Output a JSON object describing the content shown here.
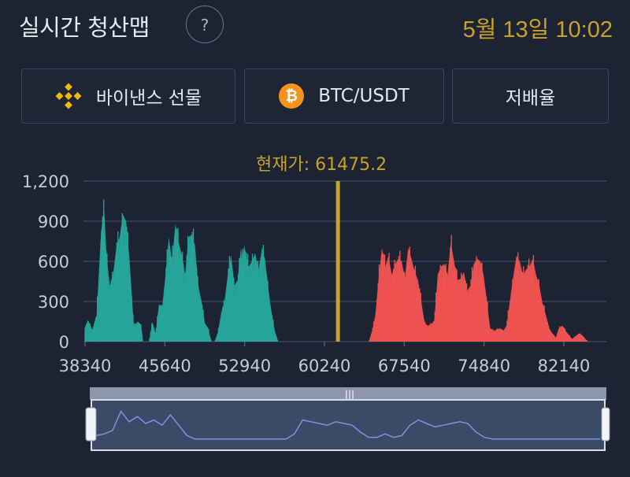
{
  "header": {
    "title": "실시간 청산맵",
    "help_label": "?",
    "timestamp": "5월 13일 10:02"
  },
  "selectors": {
    "exchange_label": "바이낸스 선물",
    "pair_label": "BTC/USDT",
    "leverage_label": "저배율"
  },
  "colors": {
    "background": "#1c2433",
    "long": "#26a69a",
    "short": "#ef5350",
    "current_price": "#c9a227",
    "navigator_line": "#7b93e0"
  },
  "chart_data": {
    "type": "area",
    "title": "",
    "current_price_label": "현재가: 61475.2",
    "current_price": 61475.2,
    "xlabel": "",
    "ylabel": "",
    "xlim": [
      38340,
      88000
    ],
    "ylim": [
      0,
      1200
    ],
    "x_ticks": [
      38340,
      45640,
      52940,
      60240,
      67540,
      74840,
      82140
    ],
    "x_tick_labels": [
      "38340",
      "45640",
      "52940",
      "60240",
      "67540",
      "74840",
      "82140"
    ],
    "y_ticks": [
      0,
      300,
      600,
      900,
      1200
    ],
    "y_tick_labels": [
      "0",
      "300",
      "600",
      "900",
      "1,200"
    ],
    "grid": true,
    "series": [
      {
        "side": "long",
        "x": [
          38300,
          38600,
          39000,
          39400,
          39800,
          40100,
          40300,
          40600,
          40900,
          41200,
          41500,
          41800,
          42100,
          42400,
          42800,
          43200,
          43500,
          43600,
          44200,
          44500,
          44800,
          45100,
          45400,
          45700,
          46000,
          46300,
          46600,
          46900,
          47200,
          47500,
          47800,
          48100,
          48400,
          48700,
          49000,
          49300,
          49600,
          49900,
          50200,
          50500,
          50800,
          51100,
          51400,
          51700,
          52000,
          52300,
          52600,
          52700,
          52900,
          53300,
          53600,
          53900,
          54200,
          54500,
          54800,
          55100,
          55400,
          55700,
          56000,
          56300,
          56600,
          56900,
          57200,
          57500,
          57800,
          58100,
          58400,
          58700,
          58800
        ],
        "y": [
          100,
          160,
          90,
          200,
          820,
          980,
          650,
          420,
          500,
          700,
          780,
          950,
          900,
          620,
          120,
          150,
          110,
          0,
          0,
          150,
          60,
          280,
          260,
          500,
          780,
          600,
          880,
          740,
          650,
          500,
          780,
          800,
          720,
          420,
          300,
          140,
          100,
          0,
          0,
          70,
          220,
          300,
          500,
          650,
          420,
          460,
          700,
          600,
          720,
          560,
          600,
          660,
          540,
          680,
          620,
          400,
          220,
          80,
          0,
          0,
          0,
          0,
          0,
          0,
          0,
          0,
          0,
          0,
          0
        ],
        "notes": ""
      },
      {
        "side": "short",
        "x": [
          64300,
          64600,
          64900,
          65200,
          65500,
          65800,
          66100,
          66400,
          66700,
          67000,
          67300,
          67600,
          67900,
          68200,
          68500,
          68800,
          69100,
          69400,
          69700,
          70000,
          70300,
          70600,
          70900,
          71200,
          71500,
          71800,
          72100,
          72400,
          72700,
          73000,
          73300,
          73600,
          73900,
          74200,
          74500,
          74800,
          75100,
          75400,
          75700,
          76000,
          76300,
          76600,
          76900,
          77200,
          77500,
          77800,
          78100,
          78400,
          78700,
          79000,
          79300,
          79600,
          79900,
          80200,
          80500,
          80800,
          81100,
          81400,
          81700,
          82000,
          82300,
          82600,
          82900,
          83200,
          83500,
          83800,
          84100,
          84400,
          84700,
          85000,
          85300,
          85600,
          85900,
          86200,
          86500,
          86800,
          87100,
          87400,
          87700
        ],
        "y": [
          0,
          80,
          200,
          480,
          700,
          560,
          640,
          500,
          580,
          620,
          600,
          480,
          700,
          620,
          520,
          460,
          300,
          140,
          120,
          130,
          160,
          500,
          560,
          580,
          500,
          740,
          600,
          460,
          470,
          520,
          380,
          420,
          580,
          620,
          600,
          500,
          300,
          100,
          80,
          90,
          100,
          80,
          120,
          300,
          480,
          640,
          600,
          500,
          540,
          560,
          620,
          500,
          420,
          280,
          200,
          100,
          60,
          30,
          100,
          120,
          80,
          50,
          20,
          40,
          60,
          50,
          20,
          0,
          0,
          0,
          0,
          0,
          0,
          0,
          0,
          0,
          0,
          0,
          0
        ]
      }
    ],
    "navigator": {
      "y": [
        0.15,
        0.2,
        0.3,
        0.85,
        0.55,
        0.7,
        0.5,
        0.6,
        0.45,
        0.75,
        0.45,
        0.15,
        0.05,
        0.05,
        0.05,
        0.05,
        0.05,
        0.05,
        0.05,
        0.05,
        0.05,
        0.05,
        0.05,
        0.05,
        0.2,
        0.6,
        0.55,
        0.5,
        0.45,
        0.55,
        0.5,
        0.45,
        0.25,
        0.1,
        0.1,
        0.2,
        0.1,
        0.15,
        0.45,
        0.6,
        0.5,
        0.4,
        0.45,
        0.5,
        0.55,
        0.5,
        0.25,
        0.1,
        0.05,
        0.05,
        0.05,
        0.05,
        0.05,
        0.05,
        0.05,
        0.05,
        0.05,
        0.05,
        0.05,
        0.05,
        0.05,
        0.05
      ],
      "handle_label": "|||"
    }
  }
}
